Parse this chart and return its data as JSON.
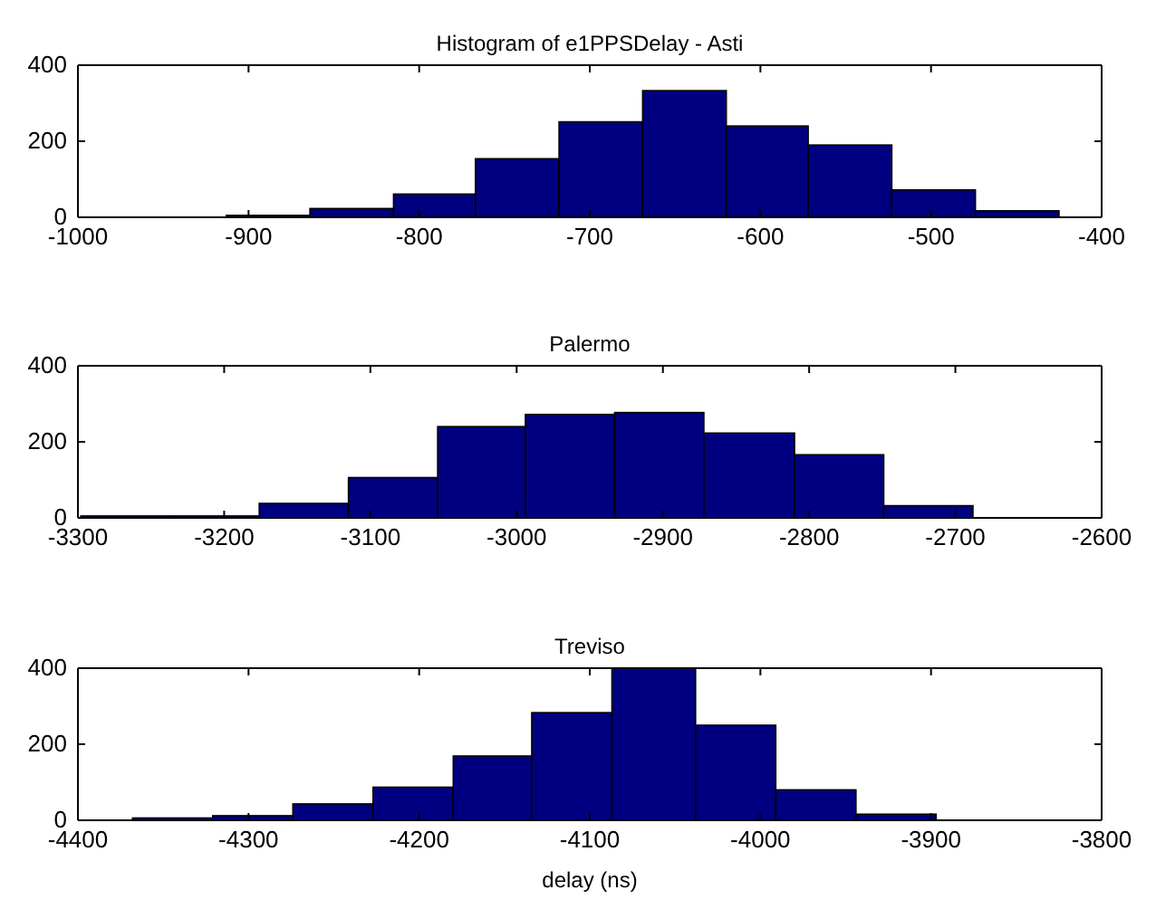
{
  "chart_data": [
    {
      "type": "histogram",
      "title": "Histogram of e1PPSDelay - Asti",
      "color": "#000080",
      "bins": [
        -913,
        -864,
        -815,
        -767,
        -718,
        -669,
        -620,
        -572,
        -523,
        -474,
        -425
      ],
      "values": [
        5,
        23,
        61,
        154,
        251,
        333,
        240,
        190,
        72,
        17
      ],
      "xlim": [
        -1000,
        -400
      ],
      "xticks": [
        -1000,
        -900,
        -800,
        -700,
        -600,
        -500,
        -400
      ],
      "ylim": [
        0,
        400
      ],
      "yticks": [
        0,
        200,
        400
      ],
      "grid": false
    },
    {
      "type": "histogram",
      "title": "Palermo",
      "color": "#000080",
      "bins": [
        -3298,
        -3237,
        -3176,
        -3115,
        -3054,
        -2994,
        -2933,
        -2872,
        -2810,
        -2749,
        -2688
      ],
      "values": [
        5,
        5,
        38,
        106,
        240,
        272,
        277,
        223,
        166,
        32
      ],
      "xlim": [
        -3300,
        -2600
      ],
      "xticks": [
        -3300,
        -3200,
        -3100,
        -3000,
        -2900,
        -2800,
        -2700,
        -2600
      ],
      "ylim": [
        0,
        400
      ],
      "yticks": [
        0,
        200,
        400
      ],
      "grid": false
    },
    {
      "type": "histogram",
      "title": "Treviso",
      "xlabel": "delay (ns)",
      "color": "#000080",
      "bins": [
        -4368,
        -4321,
        -4274,
        -4227,
        -4180,
        -4134,
        -4087,
        -4038,
        -3991,
        -3944,
        -3897
      ],
      "values": [
        6,
        12,
        43,
        87,
        169,
        283,
        400,
        250,
        80,
        16
      ],
      "xlim": [
        -4400,
        -3800
      ],
      "xticks": [
        -4400,
        -4300,
        -4200,
        -4100,
        -4000,
        -3900,
        -3800
      ],
      "ylim": [
        0,
        400
      ],
      "yticks": [
        0,
        200,
        400
      ],
      "grid": false
    }
  ]
}
